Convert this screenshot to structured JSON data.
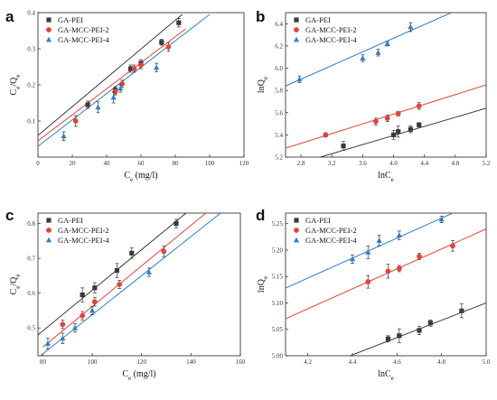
{
  "figure": {
    "colors": {
      "GA-PEI": "#3a3a3a",
      "GA-MCC-PEI-2": "#e0443a",
      "GA-MCC-PEI-4": "#2f7fc7"
    },
    "markers": {
      "GA-PEI": "square",
      "GA-MCC-PEI-2": "circle",
      "GA-MCC-PEI-4": "triangle"
    }
  },
  "chart_data": [
    {
      "panel": "a",
      "type": "scatter",
      "xlabel": "Ce (mg/l)",
      "ylabel": "Ce/Qe",
      "xlim": [
        0,
        120
      ],
      "ylim": [
        0.0,
        0.4
      ],
      "xticks": [
        0,
        20,
        40,
        60,
        80,
        100,
        120
      ],
      "yticks": [
        0.1,
        0.2,
        0.3,
        0.4
      ],
      "xtick_labels": [
        "0",
        "20",
        "40",
        "60",
        "80",
        "100",
        "120"
      ],
      "ytick_labels": [
        "0.1",
        "0.2",
        "0.3",
        "0.4"
      ],
      "legend_position": "top-left",
      "series": [
        {
          "name": "GA-PEI",
          "points": [
            [
              29,
              0.145
            ],
            [
              45,
              0.185
            ],
            [
              54,
              0.245
            ],
            [
              60,
              0.26
            ],
            [
              72,
              0.318
            ],
            [
              82,
              0.372
            ]
          ],
          "err": [
            0.01,
            0.01,
            0.01,
            0.01,
            0.008,
            0.012
          ],
          "fit": [
            [
              0,
              0.06
            ],
            [
              84,
              0.395
            ]
          ]
        },
        {
          "name": "GA-MCC-PEI-2",
          "points": [
            [
              22,
              0.1
            ],
            [
              45,
              0.182
            ],
            [
              49,
              0.203
            ],
            [
              56,
              0.245
            ],
            [
              60,
              0.255
            ],
            [
              76,
              0.305
            ]
          ],
          "err": [
            0.015,
            0.01,
            0.01,
            0.01,
            0.01,
            0.012
          ],
          "fit": [
            [
              0,
              0.045
            ],
            [
              86,
              0.355
            ]
          ]
        },
        {
          "name": "GA-MCC-PEI-4",
          "points": [
            [
              15,
              0.058
            ],
            [
              35,
              0.138
            ],
            [
              44,
              0.165
            ],
            [
              48,
              0.19
            ],
            [
              69,
              0.248
            ]
          ],
          "err": [
            0.012,
            0.015,
            0.015,
            0.01,
            0.012
          ],
          "fit": [
            [
              0,
              0.03
            ],
            [
              100,
              0.395
            ]
          ]
        }
      ]
    },
    {
      "panel": "b",
      "type": "scatter",
      "xlabel": "lnCe",
      "ylabel": "lnQe",
      "xlim": [
        2.6,
        5.2
      ],
      "ylim": [
        5.2,
        6.5
      ],
      "xticks": [
        2.8,
        3.2,
        3.6,
        4.0,
        4.4,
        4.8,
        5.2
      ],
      "yticks": [
        5.2,
        5.4,
        5.6,
        5.8,
        6.0,
        6.2,
        6.4
      ],
      "xtick_labels": [
        "2.8",
        "3.2",
        "3.6",
        "4.0",
        "4.4",
        "4.8",
        "5.2"
      ],
      "ytick_labels": [
        "5.2",
        "5.4",
        "5.6",
        "5.8",
        "6.0",
        "6.2",
        "6.4"
      ],
      "legend_position": "top-left",
      "series": [
        {
          "name": "GA-PEI",
          "points": [
            [
              3.35,
              5.3
            ],
            [
              4.0,
              5.4
            ],
            [
              4.06,
              5.43
            ],
            [
              4.22,
              5.45
            ],
            [
              4.33,
              5.49
            ]
          ],
          "err": [
            0.04,
            0.04,
            0.05,
            0.03,
            0.02
          ],
          "fit": [
            [
              3.05,
              5.2
            ],
            [
              5.2,
              5.64
            ]
          ]
        },
        {
          "name": "GA-MCC-PEI-2",
          "points": [
            [
              3.12,
              5.4
            ],
            [
              3.77,
              5.52
            ],
            [
              3.92,
              5.55
            ],
            [
              4.06,
              5.59
            ],
            [
              4.33,
              5.66
            ]
          ],
          "err": [
            0.02,
            0.03,
            0.03,
            0.02,
            0.03
          ],
          "fit": [
            [
              2.6,
              5.28
            ],
            [
              5.2,
              5.85
            ]
          ]
        },
        {
          "name": "GA-MCC-PEI-4",
          "points": [
            [
              2.78,
              5.9
            ],
            [
              3.6,
              6.09
            ],
            [
              3.8,
              6.14
            ],
            [
              3.92,
              6.22
            ],
            [
              4.22,
              6.37
            ]
          ],
          "err": [
            0.03,
            0.03,
            0.03,
            0.02,
            0.04
          ],
          "fit": [
            [
              2.6,
              5.84
            ],
            [
              4.75,
              6.5
            ]
          ]
        }
      ]
    },
    {
      "panel": "c",
      "type": "scatter",
      "xlabel": "Ce (mg/l)",
      "ylabel": "Ce/Qe",
      "xlim": [
        78,
        160
      ],
      "ylim": [
        0.42,
        0.83
      ],
      "xticks": [
        80,
        100,
        120,
        140,
        160
      ],
      "yticks": [
        0.5,
        0.6,
        0.7,
        0.8
      ],
      "xtick_labels": [
        "80",
        "100",
        "120",
        "140",
        "160"
      ],
      "ytick_labels": [
        "0.5",
        "0.6",
        "0.7",
        "0.8"
      ],
      "legend_position": "top-left",
      "series": [
        {
          "name": "GA-PEI",
          "points": [
            [
              96,
              0.595
            ],
            [
              101,
              0.615
            ],
            [
              110,
              0.665
            ],
            [
              116,
              0.715
            ],
            [
              134,
              0.8
            ]
          ],
          "err": [
            0.02,
            0.015,
            0.02,
            0.015,
            0.012
          ],
          "fit": [
            [
              78,
              0.48
            ],
            [
              138,
              0.83
            ]
          ]
        },
        {
          "name": "GA-MCC-PEI-2",
          "points": [
            [
              88,
              0.51
            ],
            [
              96,
              0.535
            ],
            [
              101,
              0.575
            ],
            [
              111,
              0.625
            ],
            [
              129,
              0.72
            ]
          ],
          "err": [
            0.012,
            0.012,
            0.012,
            0.012,
            0.015
          ],
          "fit": [
            [
              80,
              0.445
            ],
            [
              146,
              0.83
            ]
          ]
        },
        {
          "name": "GA-MCC-PEI-4",
          "points": [
            [
              82,
              0.455
            ],
            [
              88,
              0.47
            ],
            [
              93,
              0.5
            ],
            [
              100,
              0.55
            ],
            [
              123,
              0.66
            ]
          ],
          "err": [
            0.015,
            0.015,
            0.012,
            0.012,
            0.012
          ],
          "fit": [
            [
              79,
              0.42
            ],
            [
              152,
              0.83
            ]
          ]
        }
      ]
    },
    {
      "panel": "d",
      "type": "scatter",
      "xlabel": "lnCe",
      "ylabel": "lnQe",
      "xlim": [
        4.1,
        5.0
      ],
      "ylim": [
        5.0,
        5.27
      ],
      "xticks": [
        4.2,
        4.4,
        4.6,
        4.8,
        5.0
      ],
      "yticks": [
        5.0,
        5.05,
        5.1,
        5.15,
        5.2,
        5.25
      ],
      "xtick_labels": [
        "4.2",
        "4.4",
        "4.6",
        "4.8",
        "5.0"
      ],
      "ytick_labels": [
        "5.00",
        "5.05",
        "5.10",
        "5.15",
        "5.20",
        "5.25"
      ],
      "legend_position": "top-left",
      "series": [
        {
          "name": "GA-PEI",
          "points": [
            [
              4.56,
              5.032
            ],
            [
              4.61,
              5.038
            ],
            [
              4.7,
              5.048
            ],
            [
              4.75,
              5.062
            ],
            [
              4.89,
              5.085
            ]
          ],
          "err": [
            0.006,
            0.013,
            0.008,
            0.006,
            0.013
          ],
          "fit": [
            [
              4.39,
              5.0
            ],
            [
              5.0,
              5.1
            ]
          ]
        },
        {
          "name": "GA-MCC-PEI-2",
          "points": [
            [
              4.47,
              5.14
            ],
            [
              4.56,
              5.16
            ],
            [
              4.61,
              5.165
            ],
            [
              4.7,
              5.188
            ],
            [
              4.85,
              5.208
            ]
          ],
          "err": [
            0.012,
            0.013,
            0.006,
            0.006,
            0.01
          ],
          "fit": [
            [
              4.1,
              5.07
            ],
            [
              5.0,
              5.24
            ]
          ]
        },
        {
          "name": "GA-MCC-PEI-4",
          "points": [
            [
              4.4,
              5.183
            ],
            [
              4.47,
              5.196
            ],
            [
              4.52,
              5.218
            ],
            [
              4.61,
              5.228
            ],
            [
              4.8,
              5.258
            ]
          ],
          "err": [
            0.008,
            0.012,
            0.01,
            0.008,
            0.006
          ],
          "fit": [
            [
              4.1,
              5.128
            ],
            [
              4.85,
              5.27
            ]
          ]
        }
      ]
    }
  ]
}
